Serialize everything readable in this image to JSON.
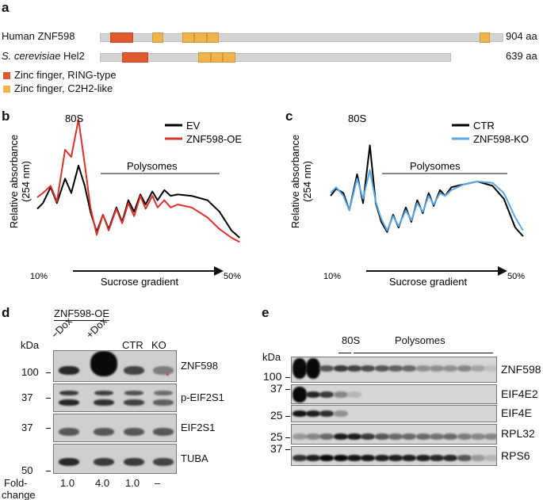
{
  "panel_labels": {
    "a": "a",
    "b": "b",
    "c": "c",
    "d": "d",
    "e": "e"
  },
  "panel_a": {
    "colors": {
      "ring": "#de5a2e",
      "c2h2": "#f0b44c",
      "backbone": "#d4d4d4"
    },
    "proteins": [
      {
        "name": "Human ZNF598",
        "length_label": "904 aa",
        "length": 904,
        "domains": [
          {
            "type": "ring",
            "start": 23,
            "end": 75
          },
          {
            "type": "c2h2",
            "start": 117,
            "end": 142
          },
          {
            "type": "c2h2",
            "start": 185,
            "end": 212
          },
          {
            "type": "c2h2",
            "start": 212,
            "end": 240
          },
          {
            "type": "c2h2",
            "start": 240,
            "end": 267
          },
          {
            "type": "c2h2",
            "start": 851,
            "end": 873
          }
        ]
      },
      {
        "name_italic": "S. cerevisiae",
        "name": "Hel2",
        "length_label": "639 aa",
        "length": 639,
        "domains": [
          {
            "type": "ring",
            "start": 40,
            "end": 88
          },
          {
            "type": "c2h2",
            "start": 179,
            "end": 202
          },
          {
            "type": "c2h2",
            "start": 202,
            "end": 224
          },
          {
            "type": "c2h2",
            "start": 224,
            "end": 247
          }
        ]
      }
    ],
    "legend": [
      {
        "type": "ring",
        "label": "Zinc finger, RING-type"
      },
      {
        "type": "c2h2",
        "label": "Zinc finger, C2H2-like"
      }
    ]
  },
  "chart_data": [
    {
      "type": "line",
      "ylabel": "Relative absorbance\n(254 nm)",
      "ylabel_lines": [
        "Relative absorbance",
        "(254 nm)"
      ],
      "xlabel": "Sucrose gradient",
      "x_tick_labels": [
        "10%",
        "50%"
      ],
      "annotations": [
        "80S",
        "Polysomes"
      ],
      "legend_placement": "top-right",
      "grid": false,
      "x": [
        9.5,
        10.7,
        12.3,
        13.6,
        15.3,
        16.6,
        18.1,
        19.4,
        20.6,
        21.9,
        23.2,
        24.4,
        26.0,
        27.2,
        28.5,
        29.7,
        31.0,
        32.1,
        33.5,
        34.6,
        36.0,
        37.3,
        38.8,
        41.7,
        45.0,
        47.5,
        50.0,
        51.7
      ],
      "series": [
        {
          "name": "EV",
          "color": "#000000",
          "values": [
            31,
            35,
            46,
            35,
            52,
            42,
            61,
            47,
            29,
            15,
            27,
            17,
            32,
            22,
            37,
            29,
            41,
            34,
            43,
            37,
            44,
            40,
            41,
            40,
            37,
            29,
            16,
            11
          ]
        },
        {
          "name": "ZNF598-OE",
          "color": "#d9312b",
          "values": [
            39,
            42,
            47,
            36,
            72,
            67,
            93,
            62,
            32,
            13,
            27,
            16,
            31,
            21,
            35,
            26,
            40,
            31,
            40,
            32,
            37,
            32,
            34,
            32,
            25,
            17,
            11,
            8
          ]
        }
      ]
    },
    {
      "type": "line",
      "ylabel": "Relative absorbance\n(254 nm)",
      "ylabel_lines": [
        "Relative absorbance",
        "(254 nm)"
      ],
      "xlabel": "Sucrose gradient",
      "x_tick_labels": [
        "10%",
        "50%"
      ],
      "annotations": [
        "80S",
        "Polysomes"
      ],
      "legend_placement": "top-right",
      "grid": false,
      "x": [
        9.5,
        10.7,
        12.3,
        13.6,
        15.3,
        16.6,
        18.1,
        19.4,
        20.6,
        21.9,
        23.2,
        24.4,
        26.0,
        27.2,
        28.5,
        29.7,
        31.0,
        32.1,
        33.5,
        34.6,
        36.0,
        37.3,
        38.8,
        41.7,
        45.0,
        47.5,
        50.0,
        51.7
      ],
      "series": [
        {
          "name": "CTR",
          "color": "#000000",
          "values": [
            40,
            45,
            42,
            30,
            55,
            35,
            75,
            35,
            22,
            15,
            27,
            18,
            32,
            22,
            37,
            28,
            42,
            33,
            44,
            40,
            46,
            47,
            48,
            50,
            47,
            38,
            18,
            12
          ]
        },
        {
          "name": "ZNF598-KO",
          "color": "#5aa9e6",
          "values": [
            42,
            46,
            40,
            30,
            52,
            38,
            58,
            36,
            24,
            16,
            26,
            19,
            30,
            23,
            35,
            29,
            40,
            34,
            42,
            40,
            44,
            46,
            48,
            50,
            49,
            42,
            25,
            16
          ]
        }
      ]
    }
  ],
  "panel_d": {
    "group_label": "ZNF598-OE",
    "kda_label": "kDa",
    "lanes": [
      "−Dox",
      "+Dox",
      "CTR",
      "KO"
    ],
    "rows": [
      {
        "protein": "ZNF598",
        "marker": "100",
        "intensity": [
          0.85,
          1.0,
          0.7,
          0.4
        ],
        "asterisk": "*"
      },
      {
        "protein": "p-EIF2S1",
        "marker": "37",
        "intensity": [
          0.85,
          0.8,
          0.7,
          0.55
        ]
      },
      {
        "protein": "EIF2S1",
        "marker": "37",
        "intensity": [
          0.6,
          0.6,
          0.6,
          0.6
        ]
      },
      {
        "protein": "TUBA",
        "marker": "50",
        "intensity": [
          0.85,
          0.75,
          0.75,
          0.7
        ]
      }
    ],
    "fold_change_label": [
      "Fold-",
      "change"
    ],
    "fold_change": [
      "1.0",
      "4.0",
      "1.0",
      "–"
    ],
    "asterisk_color": "#e03030"
  },
  "panel_e": {
    "kda_label": "kDa",
    "fraction_labels": [
      "80S",
      "Polysomes"
    ],
    "rows": [
      {
        "protein": "ZNF598",
        "markers": [
          "100"
        ],
        "intensity": [
          1,
          1,
          0.6,
          0.75,
          0.7,
          0.65,
          0.6,
          0.55,
          0.5,
          0.3,
          0.3,
          0.3,
          0.35,
          0.2,
          0.05
        ]
      },
      {
        "protein": "EIF4E2",
        "markers": [
          "37"
        ],
        "intensity": [
          1,
          0.85,
          0.75,
          0.35,
          0.1,
          0,
          0,
          0,
          0,
          0,
          0,
          0,
          0,
          0,
          0
        ]
      },
      {
        "protein": "EIF4E",
        "markers": [
          "25"
        ],
        "intensity": [
          0.95,
          0.9,
          0.8,
          0.3,
          0,
          0,
          0,
          0,
          0,
          0,
          0,
          0,
          0,
          0,
          0
        ]
      },
      {
        "protein": "RPL32",
        "markers": [
          "25"
        ],
        "intensity": [
          0.25,
          0.35,
          0.5,
          0.9,
          0.9,
          0.75,
          0.6,
          0.5,
          0.5,
          0.5,
          0.45,
          0.5,
          0.4,
          0.35,
          0.35
        ]
      },
      {
        "protein": "RPS6",
        "markers": [
          "37"
        ],
        "intensity": [
          0.8,
          0.9,
          1,
          1,
          0.95,
          0.95,
          0.9,
          0.9,
          0.9,
          0.9,
          0.85,
          0.85,
          0.6,
          0.25,
          0.1
        ]
      }
    ]
  }
}
